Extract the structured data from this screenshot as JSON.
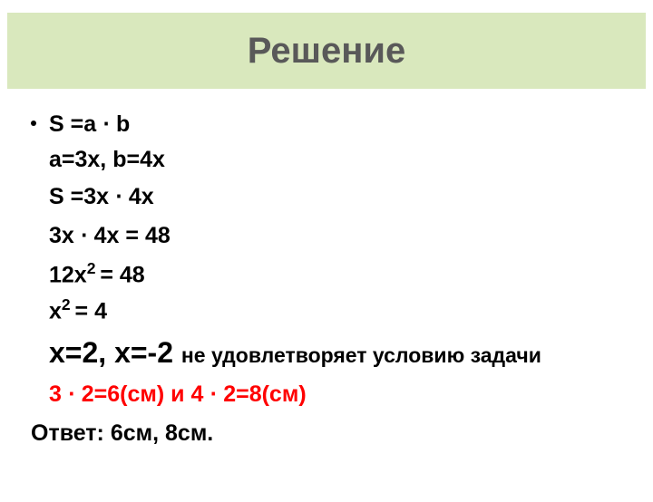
{
  "header": {
    "title": "Решение",
    "background_color": "#d9e8bd",
    "text_color": "#595959"
  },
  "colors": {
    "text": "#000000",
    "red": "#ff0000"
  },
  "lines": {
    "l1": "S =a ⋅ b",
    "l2": "a=3x,    b=4x",
    "l3": "S =3x ⋅ 4x",
    "l4": "3x ⋅ 4x = 48",
    "l5_pre": "12x",
    "l5_sup": "2 ",
    "l5_post": "= 48",
    "l6_pre": "x",
    "l6_sup": "2  ",
    "l6_post": "= ",
    "l6_last": " 4",
    "roots_big": "x=2,  x=-2 ",
    "roots_small": "не удовлетворяет условию задачи",
    "red": "3 ⋅ 2=6(см)    и   4 ⋅ 2=8(см)",
    "answer": "Ответ: 6см, 8см."
  }
}
